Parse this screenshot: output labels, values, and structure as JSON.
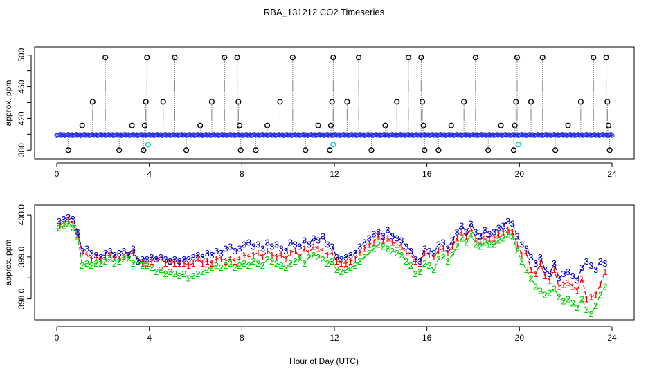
{
  "figure": {
    "title": "RBA_131212  CO2 Timeseries",
    "xlabel": "Hour of Day (UTC)"
  },
  "colors": {
    "axis": "#000000",
    "series1": "#ff0000",
    "series2": "#00cc00",
    "series3": "#0000cc",
    "outlier": "#000000",
    "cyan": "#00cccc",
    "blue_points": "#2233dd"
  },
  "chart_data": [
    {
      "type": "scatter",
      "title": "RBA_131212  CO2 Timeseries",
      "ylabel": "approx. ppm",
      "xlabel": "",
      "xlim": [
        0,
        24
      ],
      "ylim": [
        375,
        505
      ],
      "xticks": [
        0,
        4,
        8,
        12,
        16,
        20,
        24
      ],
      "yticks": [
        380,
        420,
        460,
        500
      ],
      "yticks_minor": [
        400,
        440,
        480
      ],
      "baseline": 399,
      "spikes": [
        {
          "x": 0.5,
          "y": 380
        },
        {
          "x": 1.1,
          "y": 411
        },
        {
          "x": 1.55,
          "y": 441
        },
        {
          "x": 2.1,
          "y": 497
        },
        {
          "x": 2.7,
          "y": 380
        },
        {
          "x": 3.25,
          "y": 411
        },
        {
          "x": 3.75,
          "y": 380
        },
        {
          "x": 3.8,
          "y": 411
        },
        {
          "x": 3.85,
          "y": 441
        },
        {
          "x": 3.9,
          "y": 497
        },
        {
          "x": 4.6,
          "y": 441
        },
        {
          "x": 5.1,
          "y": 497
        },
        {
          "x": 5.6,
          "y": 380
        },
        {
          "x": 6.2,
          "y": 411
        },
        {
          "x": 6.7,
          "y": 441
        },
        {
          "x": 7.25,
          "y": 497
        },
        {
          "x": 7.8,
          "y": 497
        },
        {
          "x": 7.85,
          "y": 441
        },
        {
          "x": 7.9,
          "y": 411
        },
        {
          "x": 7.95,
          "y": 380
        },
        {
          "x": 8.6,
          "y": 380
        },
        {
          "x": 9.1,
          "y": 411
        },
        {
          "x": 9.65,
          "y": 441
        },
        {
          "x": 10.2,
          "y": 497
        },
        {
          "x": 10.75,
          "y": 380
        },
        {
          "x": 11.3,
          "y": 411
        },
        {
          "x": 11.8,
          "y": 380
        },
        {
          "x": 11.85,
          "y": 411
        },
        {
          "x": 11.9,
          "y": 441
        },
        {
          "x": 11.95,
          "y": 497
        },
        {
          "x": 12.55,
          "y": 441
        },
        {
          "x": 13.05,
          "y": 497
        },
        {
          "x": 13.6,
          "y": 380
        },
        {
          "x": 14.2,
          "y": 411
        },
        {
          "x": 14.7,
          "y": 441
        },
        {
          "x": 15.2,
          "y": 497
        },
        {
          "x": 15.75,
          "y": 497
        },
        {
          "x": 15.8,
          "y": 441
        },
        {
          "x": 15.85,
          "y": 411
        },
        {
          "x": 15.9,
          "y": 380
        },
        {
          "x": 16.5,
          "y": 380
        },
        {
          "x": 17.05,
          "y": 411
        },
        {
          "x": 17.6,
          "y": 441
        },
        {
          "x": 18.1,
          "y": 497
        },
        {
          "x": 18.65,
          "y": 380
        },
        {
          "x": 19.2,
          "y": 411
        },
        {
          "x": 19.75,
          "y": 380
        },
        {
          "x": 19.8,
          "y": 411
        },
        {
          "x": 19.85,
          "y": 441
        },
        {
          "x": 19.9,
          "y": 497
        },
        {
          "x": 20.5,
          "y": 441
        },
        {
          "x": 21.0,
          "y": 497
        },
        {
          "x": 21.55,
          "y": 380
        },
        {
          "x": 22.1,
          "y": 411
        },
        {
          "x": 22.65,
          "y": 441
        },
        {
          "x": 23.2,
          "y": 497
        },
        {
          "x": 23.75,
          "y": 497
        },
        {
          "x": 23.8,
          "y": 441
        },
        {
          "x": 23.85,
          "y": 411
        },
        {
          "x": 23.9,
          "y": 380
        }
      ],
      "cyan_points": [
        {
          "x": 3.95,
          "y": 387
        },
        {
          "x": 11.95,
          "y": 387
        },
        {
          "x": 19.95,
          "y": 387
        }
      ]
    },
    {
      "type": "line",
      "title": "",
      "ylabel": "approx. ppm",
      "xlabel": "Hour of Day (UTC)",
      "xlim": [
        0,
        24
      ],
      "ylim": [
        397.55,
        400.15
      ],
      "xticks": [
        0,
        4,
        8,
        12,
        16,
        20,
        24
      ],
      "yticks": [
        398.0,
        399.0,
        400.0
      ],
      "yticks_minor": [
        398.5,
        399.5
      ],
      "x": [
        0.1,
        0.3,
        0.5,
        0.7,
        0.9,
        1.1,
        1.3,
        1.5,
        1.7,
        1.9,
        2.1,
        2.3,
        2.5,
        2.7,
        2.9,
        3.1,
        3.3,
        3.5,
        3.7,
        3.9,
        4.1,
        4.3,
        4.5,
        4.7,
        4.9,
        5.1,
        5.3,
        5.5,
        5.7,
        5.9,
        6.1,
        6.3,
        6.5,
        6.7,
        6.9,
        7.1,
        7.3,
        7.5,
        7.7,
        7.9,
        8.1,
        8.3,
        8.5,
        8.7,
        8.9,
        9.1,
        9.3,
        9.5,
        9.7,
        9.9,
        10.1,
        10.3,
        10.5,
        10.7,
        10.9,
        11.1,
        11.3,
        11.5,
        11.7,
        11.9,
        12.1,
        12.3,
        12.5,
        12.7,
        12.9,
        13.1,
        13.3,
        13.5,
        13.7,
        13.9,
        14.1,
        14.3,
        14.5,
        14.7,
        14.9,
        15.1,
        15.3,
        15.5,
        15.7,
        15.9,
        16.1,
        16.3,
        16.5,
        16.7,
        16.9,
        17.1,
        17.3,
        17.5,
        17.7,
        17.9,
        18.1,
        18.3,
        18.5,
        18.7,
        18.9,
        19.1,
        19.3,
        19.5,
        19.7,
        19.9,
        20.1,
        20.3,
        20.5,
        20.7,
        20.9,
        21.1,
        21.3,
        21.5,
        21.7,
        21.9,
        22.1,
        22.3,
        22.5,
        22.7,
        22.9,
        23.1,
        23.3,
        23.5,
        23.7
      ],
      "series": [
        {
          "name": "1",
          "values": [
            399.75,
            399.8,
            399.85,
            399.8,
            399.55,
            399.1,
            399.05,
            398.95,
            399.0,
            398.95,
            399.0,
            399.05,
            399.0,
            398.95,
            399.0,
            399.05,
            399.1,
            398.95,
            398.85,
            398.85,
            398.9,
            398.95,
            398.95,
            398.85,
            398.9,
            398.85,
            398.85,
            398.85,
            398.8,
            398.85,
            398.95,
            398.85,
            398.9,
            398.85,
            398.95,
            398.95,
            398.9,
            398.95,
            398.9,
            398.95,
            399.05,
            399.0,
            399.05,
            399.1,
            399.0,
            399.15,
            399.05,
            399.0,
            399.05,
            398.95,
            399.1,
            399.15,
            399.0,
            399.2,
            399.1,
            399.25,
            399.2,
            399.15,
            399.05,
            399.1,
            398.9,
            398.85,
            398.85,
            398.9,
            398.95,
            399.1,
            399.2,
            399.3,
            399.35,
            399.5,
            399.4,
            399.45,
            399.35,
            399.3,
            399.25,
            399.1,
            399.05,
            398.9,
            398.85,
            399.1,
            399.05,
            399.0,
            399.15,
            399.2,
            399.1,
            399.25,
            399.45,
            399.6,
            399.5,
            399.7,
            399.45,
            399.4,
            399.5,
            399.45,
            399.45,
            399.55,
            399.6,
            399.65,
            399.6,
            399.3,
            399.05,
            399.1,
            398.7,
            398.6,
            398.85,
            398.55,
            398.45,
            398.7,
            398.3,
            398.35,
            398.4,
            398.3,
            398.2,
            398.5,
            398.0,
            398.05,
            398.1,
            398.35,
            398.65
          ]
        },
        {
          "name": "2",
          "values": [
            399.7,
            399.75,
            399.8,
            399.7,
            399.5,
            398.8,
            398.85,
            398.8,
            398.85,
            398.85,
            398.9,
            398.95,
            398.85,
            398.9,
            398.95,
            398.95,
            398.85,
            398.9,
            398.8,
            398.8,
            398.75,
            398.65,
            398.7,
            398.6,
            398.65,
            398.6,
            398.55,
            398.6,
            398.5,
            398.55,
            398.6,
            398.65,
            398.7,
            398.75,
            398.8,
            398.75,
            398.8,
            398.85,
            398.75,
            398.8,
            398.85,
            398.8,
            398.9,
            398.85,
            398.8,
            398.95,
            398.9,
            398.85,
            398.8,
            398.75,
            398.85,
            398.9,
            398.95,
            398.85,
            399.0,
            399.05,
            399.0,
            398.95,
            398.85,
            398.9,
            398.7,
            398.65,
            398.7,
            398.75,
            398.8,
            398.9,
            399.0,
            399.1,
            399.2,
            399.3,
            399.25,
            399.2,
            399.15,
            399.1,
            399.05,
            398.9,
            398.8,
            398.6,
            398.65,
            398.85,
            398.8,
            398.7,
            398.95,
            399.0,
            398.9,
            399.05,
            399.25,
            399.45,
            399.35,
            399.55,
            399.3,
            399.25,
            399.35,
            399.3,
            399.3,
            399.4,
            399.45,
            399.55,
            399.5,
            399.15,
            398.9,
            398.7,
            398.5,
            398.3,
            398.2,
            398.1,
            398.15,
            398.25,
            398.05,
            397.95,
            398.0,
            397.9,
            397.8,
            398.0,
            397.75,
            397.65,
            397.85,
            398.1,
            398.3
          ]
        },
        {
          "name": "3",
          "values": [
            399.85,
            399.9,
            399.95,
            399.9,
            399.6,
            399.15,
            399.2,
            399.1,
            399.05,
            399.0,
            399.1,
            399.15,
            399.05,
            399.1,
            399.15,
            399.05,
            399.2,
            398.9,
            398.95,
            398.95,
            399.0,
            398.95,
            399.0,
            398.95,
            398.9,
            398.95,
            398.9,
            398.95,
            398.95,
            399.0,
            399.05,
            399.0,
            399.1,
            399.05,
            399.15,
            399.1,
            399.2,
            399.25,
            399.15,
            399.2,
            399.3,
            399.35,
            399.25,
            399.3,
            399.2,
            399.35,
            399.25,
            399.3,
            399.2,
            399.15,
            399.35,
            399.3,
            399.25,
            399.4,
            399.3,
            399.45,
            399.4,
            399.5,
            399.3,
            399.25,
            399.0,
            398.95,
            399.0,
            399.05,
            399.1,
            399.25,
            399.35,
            399.45,
            399.55,
            399.6,
            399.5,
            399.65,
            399.5,
            399.45,
            399.4,
            399.25,
            399.15,
            398.95,
            398.9,
            399.2,
            399.15,
            399.1,
            399.3,
            399.35,
            399.2,
            399.4,
            399.6,
            399.75,
            399.6,
            399.8,
            399.6,
            399.5,
            399.65,
            399.55,
            399.6,
            399.7,
            399.75,
            399.85,
            399.8,
            399.5,
            399.3,
            399.2,
            399.0,
            398.85,
            399.0,
            398.7,
            398.6,
            398.85,
            398.5,
            398.6,
            398.65,
            398.55,
            398.45,
            398.75,
            398.9,
            398.8,
            398.7,
            398.9,
            398.85
          ]
        }
      ]
    }
  ]
}
